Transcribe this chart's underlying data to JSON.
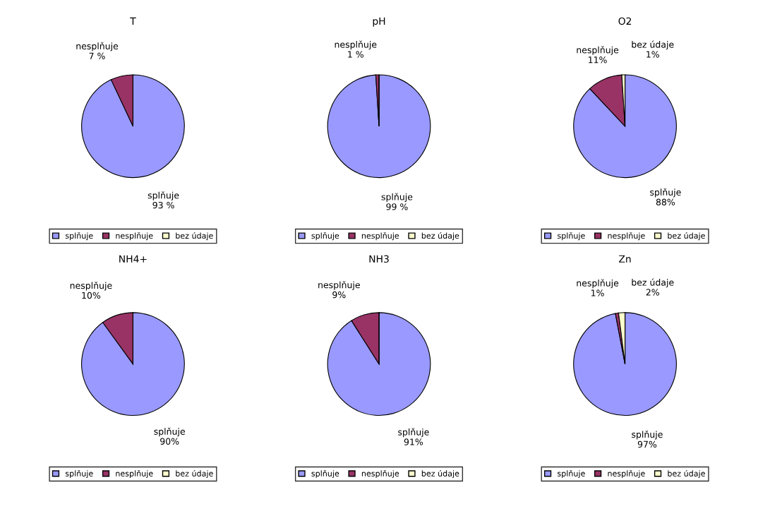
{
  "chart_data": [
    {
      "type": "pie",
      "title": "T",
      "categories": [
        "splňuje",
        "nesplňuje",
        "bez údaje"
      ],
      "values": [
        93,
        7,
        0
      ],
      "colors": [
        "#9999ff",
        "#993366",
        "#ffffcc"
      ],
      "value_labels": [
        "93 %",
        "7 %",
        null
      ],
      "legend": "bottom"
    },
    {
      "type": "pie",
      "title": "pH",
      "categories": [
        "splňuje",
        "nesplňuje",
        "bez údaje"
      ],
      "values": [
        99,
        1,
        0
      ],
      "colors": [
        "#9999ff",
        "#993366",
        "#ffffcc"
      ],
      "value_labels": [
        "99 %",
        "1 %",
        null
      ],
      "legend": "bottom"
    },
    {
      "type": "pie",
      "title": "O2",
      "categories": [
        "splňuje",
        "nesplňuje",
        "bez údaje"
      ],
      "values": [
        88,
        11,
        1
      ],
      "colors": [
        "#9999ff",
        "#993366",
        "#ffffcc"
      ],
      "value_labels": [
        "88%",
        "11%",
        "1%"
      ],
      "legend": "bottom"
    },
    {
      "type": "pie",
      "title": "NH4+",
      "categories": [
        "splňuje",
        "nesplňuje",
        "bez údaje"
      ],
      "values": [
        90,
        10,
        0
      ],
      "colors": [
        "#9999ff",
        "#993366",
        "#ffffcc"
      ],
      "value_labels": [
        "90%",
        "10%",
        null
      ],
      "legend": "bottom"
    },
    {
      "type": "pie",
      "title": "NH3",
      "categories": [
        "splňuje",
        "nesplňuje",
        "bez údaje"
      ],
      "values": [
        91,
        9,
        0
      ],
      "colors": [
        "#9999ff",
        "#993366",
        "#ffffcc"
      ],
      "value_labels": [
        "91%",
        "9%",
        null
      ],
      "legend": "bottom"
    },
    {
      "type": "pie",
      "title": "Zn",
      "categories": [
        "splňuje",
        "nesplňuje",
        "bez údaje"
      ],
      "values": [
        97,
        1,
        2
      ],
      "colors": [
        "#9999ff",
        "#993366",
        "#ffffcc"
      ],
      "value_labels": [
        "97%",
        "1%",
        "2%"
      ],
      "legend": "bottom"
    }
  ]
}
